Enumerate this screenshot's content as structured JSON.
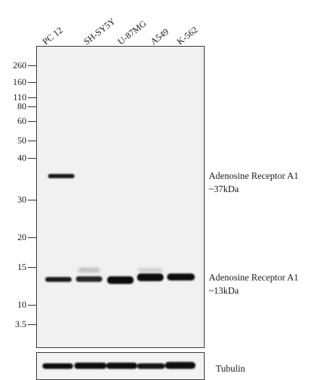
{
  "lanes": [
    "PC 12",
    "SH-SY5Y",
    "U-87MG",
    "A549",
    "K-562"
  ],
  "mw_markers": [
    "260",
    "160",
    "110",
    "80",
    "60",
    "50",
    "40",
    "30",
    "20",
    "15",
    "10",
    "3.5"
  ],
  "band_labels": [
    {
      "name": "Adenosine Receptor A1",
      "size": "~37kDa"
    },
    {
      "name": "Adenosine Receptor A1",
      "size": "~13kDa"
    }
  ],
  "loading_control": "Tubulin"
}
